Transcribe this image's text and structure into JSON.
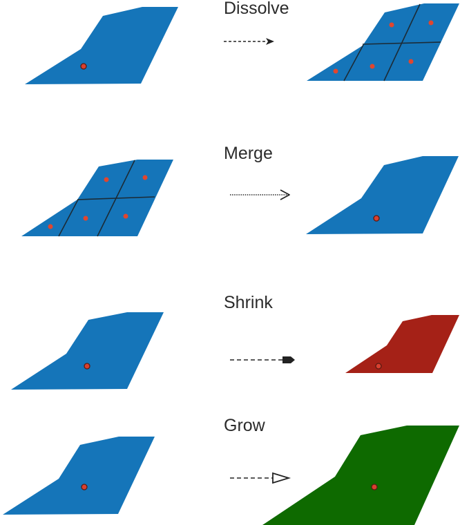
{
  "colors": {
    "source": "#1575B9",
    "shrunk": "#A52117",
    "grown": "#0E6A00",
    "centroid_fill": "#D9402F",
    "centroid_stroke": "#5a1a12",
    "point": "#E0462F",
    "grid_line": "#1c2b36",
    "arrow": "#222222"
  },
  "operations": [
    {
      "id": "dissolve",
      "label": "Dissolve",
      "arrow_style": "dashed-open-head"
    },
    {
      "id": "merge",
      "label": "Merge",
      "arrow_style": "dotted-line-head"
    },
    {
      "id": "shrink",
      "label": "Shrink",
      "arrow_style": "dashed-filled-pointer"
    },
    {
      "id": "grow",
      "label": "Grow",
      "arrow_style": "dashed-hollow-triangle"
    }
  ]
}
